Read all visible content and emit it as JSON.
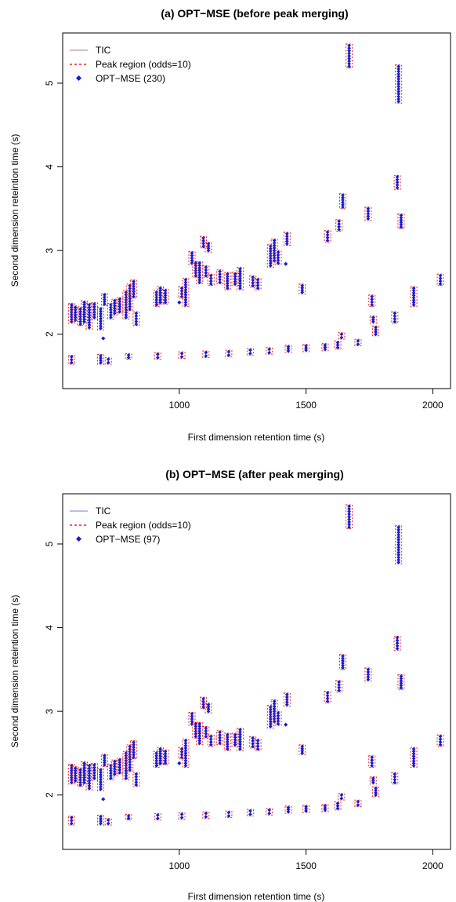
{
  "chart_data": [
    {
      "type": "scatter",
      "title": "(a) OPT−MSE (before peak merging)",
      "xlabel": "First dimension retention time (s)",
      "ylabel": "Second dimension reteintion time (s)",
      "xlim": [
        540,
        2070
      ],
      "ylim": [
        1.35,
        5.6
      ],
      "x_ticks": [
        1000,
        1500,
        2000
      ],
      "x_tick_labels": [
        "1000",
        "1500",
        "2000"
      ],
      "y_ticks": [
        2,
        3,
        4,
        5
      ],
      "y_tick_labels": [
        "2",
        "3",
        "4",
        "5"
      ],
      "legend_position": "top-left",
      "legend": [
        {
          "label": "TIC",
          "kind": "line",
          "color": "#c8a0c8"
        },
        {
          "label": "Peak region (odds=10)",
          "kind": "dashed",
          "color": "#ee2222"
        },
        {
          "label": "OPT−MSE (230)",
          "kind": "point",
          "color": "#1a1acc"
        }
      ],
      "clusters": [
        {
          "x": 575,
          "y_min": 2.15,
          "y_max": 2.35
        },
        {
          "x": 590,
          "y_min": 2.17,
          "y_max": 2.32
        },
        {
          "x": 610,
          "y_min": 2.12,
          "y_max": 2.3
        },
        {
          "x": 625,
          "y_min": 2.15,
          "y_max": 2.38
        },
        {
          "x": 645,
          "y_min": 2.08,
          "y_max": 2.35
        },
        {
          "x": 665,
          "y_min": 2.2,
          "y_max": 2.36
        },
        {
          "x": 690,
          "y_min": 2.07,
          "y_max": 2.3
        },
        {
          "x": 705,
          "y_min": 2.36,
          "y_max": 2.47
        },
        {
          "x": 730,
          "y_min": 2.2,
          "y_max": 2.35
        },
        {
          "x": 745,
          "y_min": 2.25,
          "y_max": 2.4
        },
        {
          "x": 765,
          "y_min": 2.27,
          "y_max": 2.42
        },
        {
          "x": 790,
          "y_min": 2.2,
          "y_max": 2.5
        },
        {
          "x": 805,
          "y_min": 2.3,
          "y_max": 2.58
        },
        {
          "x": 820,
          "y_min": 2.45,
          "y_max": 2.63
        },
        {
          "x": 830,
          "y_min": 2.12,
          "y_max": 2.25
        },
        {
          "x": 910,
          "y_min": 2.35,
          "y_max": 2.5
        },
        {
          "x": 925,
          "y_min": 2.38,
          "y_max": 2.55
        },
        {
          "x": 945,
          "y_min": 2.38,
          "y_max": 2.52
        },
        {
          "x": 1010,
          "y_min": 2.45,
          "y_max": 2.55
        },
        {
          "x": 1025,
          "y_min": 2.35,
          "y_max": 2.65
        },
        {
          "x": 1050,
          "y_min": 2.85,
          "y_max": 2.97
        },
        {
          "x": 1065,
          "y_min": 2.7,
          "y_max": 2.85
        },
        {
          "x": 1080,
          "y_min": 2.62,
          "y_max": 2.85
        },
        {
          "x": 1095,
          "y_min": 3.05,
          "y_max": 3.15
        },
        {
          "x": 1105,
          "y_min": 2.7,
          "y_max": 2.8
        },
        {
          "x": 1115,
          "y_min": 3.0,
          "y_max": 3.08
        },
        {
          "x": 1125,
          "y_min": 2.6,
          "y_max": 2.7
        },
        {
          "x": 1160,
          "y_min": 2.62,
          "y_max": 2.75
        },
        {
          "x": 1190,
          "y_min": 2.55,
          "y_max": 2.72
        },
        {
          "x": 1220,
          "y_min": 2.6,
          "y_max": 2.72
        },
        {
          "x": 1240,
          "y_min": 2.55,
          "y_max": 2.78
        },
        {
          "x": 1290,
          "y_min": 2.58,
          "y_max": 2.68
        },
        {
          "x": 1310,
          "y_min": 2.55,
          "y_max": 2.65
        },
        {
          "x": 1360,
          "y_min": 2.82,
          "y_max": 3.05
        },
        {
          "x": 1375,
          "y_min": 2.88,
          "y_max": 3.12
        },
        {
          "x": 1390,
          "y_min": 2.85,
          "y_max": 2.98
        },
        {
          "x": 1425,
          "y_min": 3.08,
          "y_max": 3.2
        },
        {
          "x": 1485,
          "y_min": 2.5,
          "y_max": 2.58
        },
        {
          "x": 1585,
          "y_min": 3.12,
          "y_max": 3.22
        },
        {
          "x": 1630,
          "y_min": 3.25,
          "y_max": 3.35
        },
        {
          "x": 1645,
          "y_min": 3.52,
          "y_max": 3.66
        },
        {
          "x": 1670,
          "y_min": 5.2,
          "y_max": 5.45
        },
        {
          "x": 1745,
          "y_min": 3.38,
          "y_max": 3.5
        },
        {
          "x": 1760,
          "y_min": 2.35,
          "y_max": 2.45
        },
        {
          "x": 1765,
          "y_min": 2.15,
          "y_max": 2.2
        },
        {
          "x": 1775,
          "y_min": 2.0,
          "y_max": 2.08
        },
        {
          "x": 1850,
          "y_min": 2.15,
          "y_max": 2.25
        },
        {
          "x": 1860,
          "y_min": 3.75,
          "y_max": 3.88
        },
        {
          "x": 1865,
          "y_min": 4.78,
          "y_max": 5.2
        },
        {
          "x": 1875,
          "y_min": 3.28,
          "y_max": 3.42
        },
        {
          "x": 1925,
          "y_min": 2.35,
          "y_max": 2.55
        },
        {
          "x": 2030,
          "y_min": 2.6,
          "y_max": 2.7
        },
        {
          "x": 575,
          "y_min": 1.66,
          "y_max": 1.73
        },
        {
          "x": 690,
          "y_min": 1.66,
          "y_max": 1.74
        },
        {
          "x": 720,
          "y_min": 1.66,
          "y_max": 1.7
        },
        {
          "x": 800,
          "y_min": 1.72,
          "y_max": 1.75
        },
        {
          "x": 915,
          "y_min": 1.72,
          "y_max": 1.76
        },
        {
          "x": 1010,
          "y_min": 1.73,
          "y_max": 1.77
        },
        {
          "x": 1105,
          "y_min": 1.74,
          "y_max": 1.78
        },
        {
          "x": 1195,
          "y_min": 1.75,
          "y_max": 1.79
        },
        {
          "x": 1280,
          "y_min": 1.77,
          "y_max": 1.81
        },
        {
          "x": 1355,
          "y_min": 1.78,
          "y_max": 1.82
        },
        {
          "x": 1430,
          "y_min": 1.8,
          "y_max": 1.85
        },
        {
          "x": 1500,
          "y_min": 1.81,
          "y_max": 1.86
        },
        {
          "x": 1575,
          "y_min": 1.82,
          "y_max": 1.87
        },
        {
          "x": 1625,
          "y_min": 1.84,
          "y_max": 1.9
        },
        {
          "x": 1640,
          "y_min": 1.96,
          "y_max": 2.0
        },
        {
          "x": 1705,
          "y_min": 1.88,
          "y_max": 1.92
        }
      ],
      "singletons": [
        {
          "x": 700,
          "y": 1.95
        },
        {
          "x": 1000,
          "y": 2.38
        },
        {
          "x": 1420,
          "y": 2.84
        }
      ]
    },
    {
      "type": "scatter",
      "title": "(b) OPT−MSE (after peak merging)",
      "xlabel": "First dimension retention time (s)",
      "ylabel": "Second dimension reteintion time (s)",
      "xlim": [
        540,
        2070
      ],
      "ylim": [
        1.35,
        5.6
      ],
      "x_ticks": [
        1000,
        1500,
        2000
      ],
      "x_tick_labels": [
        "1000",
        "1500",
        "2000"
      ],
      "y_ticks": [
        2,
        3,
        4,
        5
      ],
      "y_tick_labels": [
        "2",
        "3",
        "4",
        "5"
      ],
      "legend_position": "top-left",
      "legend": [
        {
          "label": "TIC",
          "kind": "line",
          "color": "#a0a8e0"
        },
        {
          "label": "Peak region (odds=10)",
          "kind": "dashed",
          "color": "#ee2222"
        },
        {
          "label": "OPT−MSE (97)",
          "kind": "point",
          "color": "#1a1acc"
        }
      ],
      "clusters": [
        {
          "x": 575,
          "y_min": 2.15,
          "y_max": 2.35
        },
        {
          "x": 590,
          "y_min": 2.17,
          "y_max": 2.32
        },
        {
          "x": 610,
          "y_min": 2.12,
          "y_max": 2.3
        },
        {
          "x": 625,
          "y_min": 2.15,
          "y_max": 2.38
        },
        {
          "x": 645,
          "y_min": 2.08,
          "y_max": 2.35
        },
        {
          "x": 665,
          "y_min": 2.2,
          "y_max": 2.36
        },
        {
          "x": 690,
          "y_min": 2.07,
          "y_max": 2.3
        },
        {
          "x": 705,
          "y_min": 2.36,
          "y_max": 2.47
        },
        {
          "x": 730,
          "y_min": 2.2,
          "y_max": 2.35
        },
        {
          "x": 745,
          "y_min": 2.25,
          "y_max": 2.4
        },
        {
          "x": 765,
          "y_min": 2.27,
          "y_max": 2.42
        },
        {
          "x": 790,
          "y_min": 2.2,
          "y_max": 2.5
        },
        {
          "x": 805,
          "y_min": 2.3,
          "y_max": 2.58
        },
        {
          "x": 820,
          "y_min": 2.45,
          "y_max": 2.63
        },
        {
          "x": 830,
          "y_min": 2.12,
          "y_max": 2.25
        },
        {
          "x": 910,
          "y_min": 2.35,
          "y_max": 2.5
        },
        {
          "x": 925,
          "y_min": 2.38,
          "y_max": 2.55
        },
        {
          "x": 945,
          "y_min": 2.38,
          "y_max": 2.52
        },
        {
          "x": 1010,
          "y_min": 2.45,
          "y_max": 2.55
        },
        {
          "x": 1025,
          "y_min": 2.35,
          "y_max": 2.65
        },
        {
          "x": 1050,
          "y_min": 2.85,
          "y_max": 2.97
        },
        {
          "x": 1065,
          "y_min": 2.7,
          "y_max": 2.85
        },
        {
          "x": 1080,
          "y_min": 2.62,
          "y_max": 2.85
        },
        {
          "x": 1095,
          "y_min": 3.05,
          "y_max": 3.15
        },
        {
          "x": 1105,
          "y_min": 2.7,
          "y_max": 2.8
        },
        {
          "x": 1115,
          "y_min": 3.0,
          "y_max": 3.08
        },
        {
          "x": 1125,
          "y_min": 2.6,
          "y_max": 2.7
        },
        {
          "x": 1160,
          "y_min": 2.62,
          "y_max": 2.75
        },
        {
          "x": 1190,
          "y_min": 2.55,
          "y_max": 2.72
        },
        {
          "x": 1220,
          "y_min": 2.6,
          "y_max": 2.72
        },
        {
          "x": 1240,
          "y_min": 2.55,
          "y_max": 2.78
        },
        {
          "x": 1290,
          "y_min": 2.58,
          "y_max": 2.68
        },
        {
          "x": 1310,
          "y_min": 2.55,
          "y_max": 2.65
        },
        {
          "x": 1360,
          "y_min": 2.82,
          "y_max": 3.05
        },
        {
          "x": 1375,
          "y_min": 2.88,
          "y_max": 3.12
        },
        {
          "x": 1390,
          "y_min": 2.85,
          "y_max": 2.98
        },
        {
          "x": 1425,
          "y_min": 3.08,
          "y_max": 3.2
        },
        {
          "x": 1485,
          "y_min": 2.5,
          "y_max": 2.58
        },
        {
          "x": 1585,
          "y_min": 3.12,
          "y_max": 3.22
        },
        {
          "x": 1630,
          "y_min": 3.25,
          "y_max": 3.35
        },
        {
          "x": 1645,
          "y_min": 3.52,
          "y_max": 3.66
        },
        {
          "x": 1670,
          "y_min": 5.2,
          "y_max": 5.45
        },
        {
          "x": 1745,
          "y_min": 3.38,
          "y_max": 3.5
        },
        {
          "x": 1760,
          "y_min": 2.35,
          "y_max": 2.45
        },
        {
          "x": 1765,
          "y_min": 2.15,
          "y_max": 2.2
        },
        {
          "x": 1775,
          "y_min": 2.0,
          "y_max": 2.08
        },
        {
          "x": 1850,
          "y_min": 2.15,
          "y_max": 2.25
        },
        {
          "x": 1860,
          "y_min": 3.75,
          "y_max": 3.88
        },
        {
          "x": 1865,
          "y_min": 4.78,
          "y_max": 5.2
        },
        {
          "x": 1875,
          "y_min": 3.28,
          "y_max": 3.42
        },
        {
          "x": 1925,
          "y_min": 2.35,
          "y_max": 2.55
        },
        {
          "x": 2030,
          "y_min": 2.6,
          "y_max": 2.7
        },
        {
          "x": 575,
          "y_min": 1.66,
          "y_max": 1.73
        },
        {
          "x": 690,
          "y_min": 1.66,
          "y_max": 1.74
        },
        {
          "x": 720,
          "y_min": 1.66,
          "y_max": 1.7
        },
        {
          "x": 800,
          "y_min": 1.72,
          "y_max": 1.75
        },
        {
          "x": 915,
          "y_min": 1.72,
          "y_max": 1.76
        },
        {
          "x": 1010,
          "y_min": 1.73,
          "y_max": 1.77
        },
        {
          "x": 1105,
          "y_min": 1.74,
          "y_max": 1.78
        },
        {
          "x": 1195,
          "y_min": 1.75,
          "y_max": 1.79
        },
        {
          "x": 1280,
          "y_min": 1.77,
          "y_max": 1.81
        },
        {
          "x": 1355,
          "y_min": 1.78,
          "y_max": 1.82
        },
        {
          "x": 1430,
          "y_min": 1.8,
          "y_max": 1.85
        },
        {
          "x": 1500,
          "y_min": 1.81,
          "y_max": 1.86
        },
        {
          "x": 1575,
          "y_min": 1.82,
          "y_max": 1.87
        },
        {
          "x": 1625,
          "y_min": 1.84,
          "y_max": 1.9
        },
        {
          "x": 1640,
          "y_min": 1.96,
          "y_max": 2.0
        },
        {
          "x": 1705,
          "y_min": 1.88,
          "y_max": 1.92
        }
      ],
      "singletons": [
        {
          "x": 700,
          "y": 1.95
        },
        {
          "x": 1000,
          "y": 2.38
        },
        {
          "x": 1420,
          "y": 2.84
        }
      ]
    }
  ]
}
